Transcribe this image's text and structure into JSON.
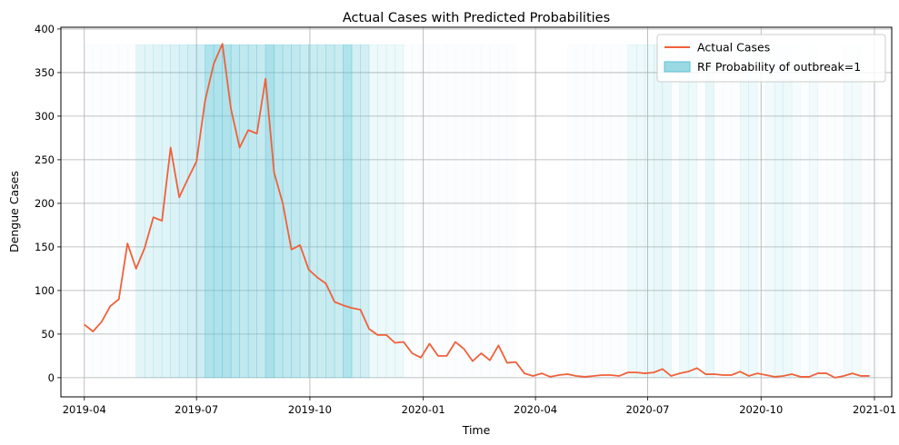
{
  "chart_data": {
    "type": "line",
    "title": "Actual Cases with Predicted Probabilities",
    "xlabel": "Time",
    "ylabel": "Dengue Cases",
    "xlim": [
      "2019-03-13",
      "2021-01-15"
    ],
    "ylim": [
      -22,
      402
    ],
    "x_ticks": [
      {
        "date": "2019-04-01",
        "label": "2019-04"
      },
      {
        "date": "2019-07-01",
        "label": "2019-07"
      },
      {
        "date": "2019-10-01",
        "label": "2019-10"
      },
      {
        "date": "2020-01-01",
        "label": "2020-01"
      },
      {
        "date": "2020-04-01",
        "label": "2020-04"
      },
      {
        "date": "2020-07-01",
        "label": "2020-07"
      },
      {
        "date": "2020-10-01",
        "label": "2020-10"
      },
      {
        "date": "2021-01-01",
        "label": "2021-01"
      }
    ],
    "y_ticks": [
      0,
      50,
      100,
      150,
      200,
      250,
      300,
      350,
      400
    ],
    "grid": true,
    "legend_position": "top-right",
    "series_color": "#f0613a",
    "band_color": "#5ec4d6",
    "band_top": 382,
    "series": [
      {
        "name": "Actual Cases",
        "start_date": "2019-04-01",
        "interval_days": 7,
        "values": [
          61,
          53,
          64,
          82,
          90,
          154,
          125,
          149,
          184,
          180,
          264,
          207,
          228,
          248,
          318,
          360,
          383,
          308,
          264,
          284,
          280,
          343,
          235,
          200,
          147,
          152,
          124,
          115,
          108,
          87,
          83,
          80,
          78,
          56,
          49,
          49,
          40,
          41,
          28,
          23,
          39,
          25,
          25,
          41,
          33,
          19,
          28,
          20,
          37,
          17,
          18,
          5,
          2,
          5,
          1,
          3,
          4,
          2,
          1,
          2,
          3,
          3,
          2,
          6,
          6,
          5,
          6,
          10,
          2,
          5,
          7,
          11,
          4,
          4,
          3,
          3,
          7,
          2,
          5,
          3,
          1,
          2,
          4,
          1,
          1,
          5,
          5,
          0,
          2,
          5,
          2,
          2
        ]
      }
    ],
    "probability_series": {
      "name": "RF Probability of outbreak=1",
      "start_date": "2019-04-01",
      "interval_days": 7,
      "values": [
        0.05,
        0.05,
        0.05,
        0.05,
        0.05,
        0.05,
        0.3,
        0.3,
        0.35,
        0.35,
        0.4,
        0.45,
        0.5,
        0.55,
        0.9,
        0.9,
        0.9,
        0.75,
        0.7,
        0.7,
        0.65,
        0.95,
        0.75,
        0.7,
        0.7,
        0.6,
        0.6,
        0.6,
        0.65,
        0.6,
        0.9,
        0.5,
        0.5,
        0.2,
        0.2,
        0.2,
        0.2,
        0.05,
        0.05,
        0.05,
        0.05,
        0.05,
        0.05,
        0.05,
        0.05,
        0.05,
        0.05,
        0.05,
        0.05,
        0.05,
        0,
        0,
        0,
        0,
        0,
        0,
        0.05,
        0.05,
        0.05,
        0.05,
        0.05,
        0.05,
        0.05,
        0.2,
        0.2,
        0.2,
        0.25,
        0.25,
        0.05,
        0.2,
        0.2,
        0.05,
        0.25,
        0.05,
        0.05,
        0.05,
        0.2,
        0.2,
        0.05,
        0.15,
        0.2,
        0.2,
        0.1,
        0.05,
        0.15,
        0.05,
        0.05,
        0.05,
        0.15,
        0.15,
        0.05,
        0.05
      ]
    }
  }
}
